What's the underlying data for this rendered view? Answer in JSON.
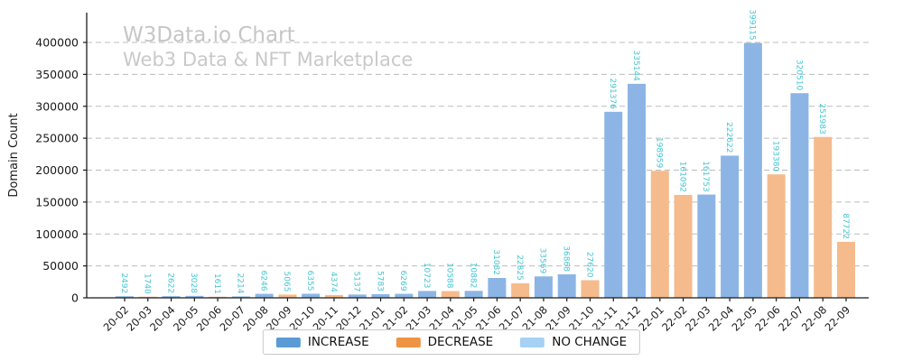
{
  "watermark": {
    "title": "W3Data.io Chart",
    "subtitle": "Web3 Data & NFT Marketplace"
  },
  "colors": {
    "increase": "#5b9bd5",
    "decrease": "#ee9444",
    "no_change": "#a6d1f5",
    "increase_bar_fill": "#8cb5e5",
    "decrease_bar_fill": "#f5bb8d",
    "no_change_bar_fill": "#a6d1f5",
    "value_label": "#45c5d2",
    "watermark_text": "#c7c7c7",
    "grid": "#bcbcbc",
    "axis": "#1a1a1a"
  },
  "legend": {
    "items": [
      {
        "key": "increase",
        "label": "INCREASE"
      },
      {
        "key": "decrease",
        "label": "DECREASE"
      },
      {
        "key": "no_change",
        "label": "NO CHANGE"
      }
    ]
  },
  "chart_data": {
    "type": "bar",
    "title": "W3Data.io Chart",
    "subtitle": "Web3 Data & NFT Marketplace",
    "xlabel": "",
    "ylabel": "Domain Count",
    "ylim": [
      0,
      440000
    ],
    "yticks": [
      0,
      50000,
      100000,
      150000,
      200000,
      250000,
      300000,
      350000,
      400000
    ],
    "grid": "horizontal-dashed",
    "legend_position": "bottom-center",
    "value_labels_rotation": 90,
    "xtick_rotation": 45,
    "categories": [
      "20-02",
      "20-03",
      "20-04",
      "20-05",
      "20-06",
      "20-07",
      "20-08",
      "20-09",
      "20-10",
      "20-11",
      "20-12",
      "21-01",
      "21-02",
      "21-03",
      "21-04",
      "21-05",
      "21-06",
      "21-07",
      "21-08",
      "21-09",
      "21-10",
      "21-11",
      "21-12",
      "22-01",
      "22-02",
      "22-03",
      "22-04",
      "22-05",
      "22-06",
      "22-07",
      "22-08",
      "22-09"
    ],
    "values": [
      2492,
      1740,
      2622,
      3028,
      1611,
      2214,
      6246,
      5065,
      6355,
      4374,
      5137,
      5783,
      6269,
      10723,
      10588,
      10882,
      31082,
      22825,
      33569,
      36868,
      27620,
      291376,
      335144,
      198959,
      161092,
      161753,
      222622,
      399115,
      193380,
      320510,
      251983,
      87722
    ],
    "change_type": [
      "increase",
      "decrease",
      "increase",
      "increase",
      "decrease",
      "increase",
      "increase",
      "decrease",
      "increase",
      "decrease",
      "increase",
      "increase",
      "increase",
      "increase",
      "decrease",
      "increase",
      "increase",
      "decrease",
      "increase",
      "increase",
      "decrease",
      "increase",
      "increase",
      "decrease",
      "decrease",
      "increase",
      "increase",
      "increase",
      "decrease",
      "increase",
      "decrease",
      "decrease"
    ]
  }
}
